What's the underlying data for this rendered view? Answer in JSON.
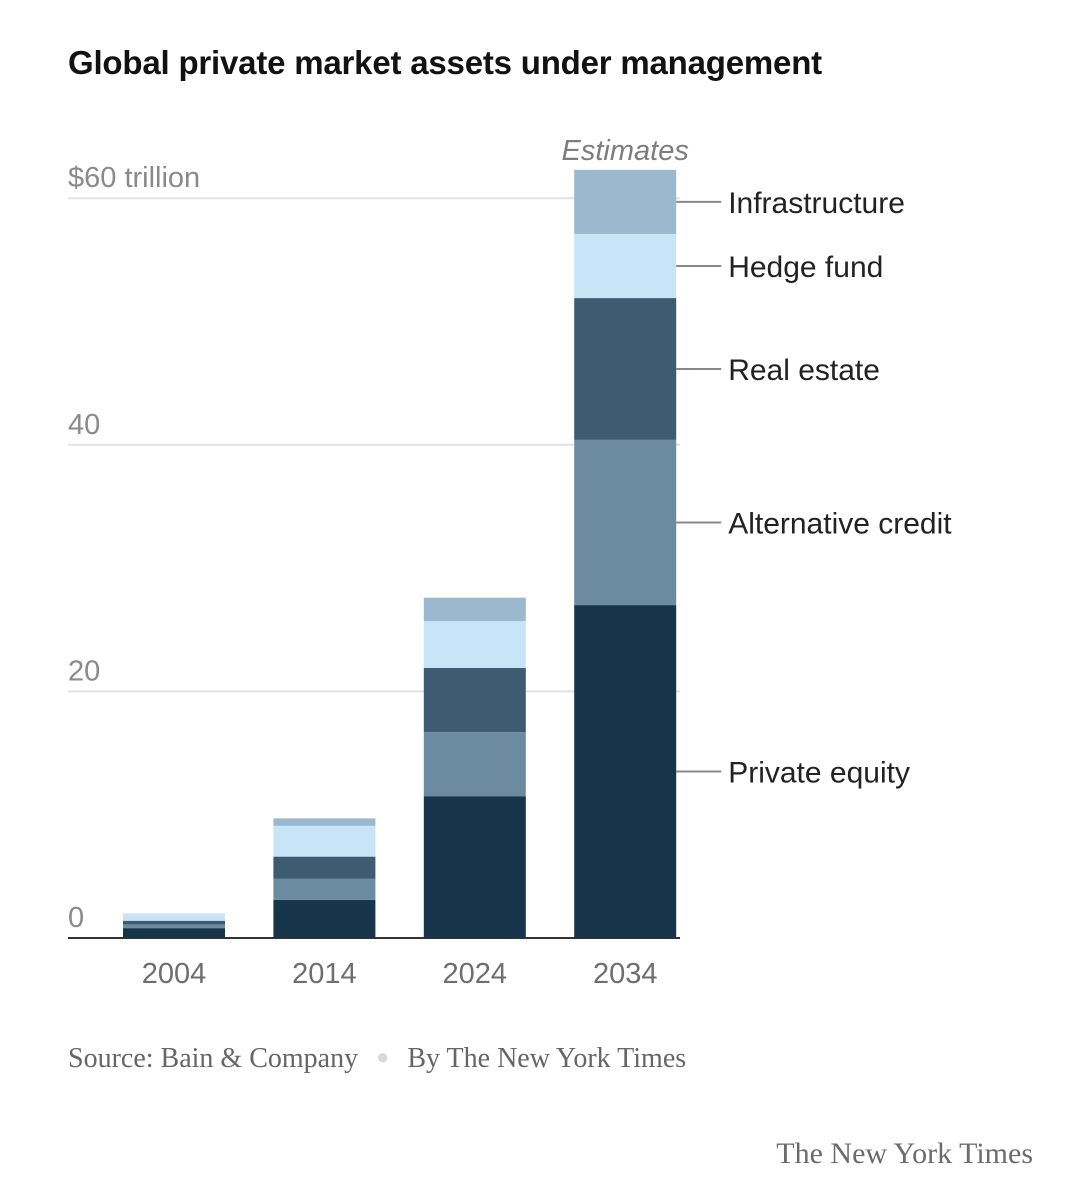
{
  "title": "Global private market assets under management",
  "source": "Source: Bain & Company",
  "byline": "By The New York Times",
  "brand": "The New York Times",
  "chart_data": {
    "type": "bar",
    "stacked": true,
    "categories": [
      "2004",
      "2014",
      "2024",
      "2034"
    ],
    "estimate_label": "Estimates",
    "estimate_category": "2034",
    "y_tick_values": [
      0,
      20,
      40,
      60
    ],
    "y_tick_labels": [
      "0",
      "20",
      "40",
      "$60 trillion"
    ],
    "ylim": [
      0,
      62.5
    ],
    "grid": true,
    "legend_placement": "right of last bar",
    "series": [
      {
        "name": "Private equity",
        "color": "#17354a",
        "values": [
          0.8,
          3.1,
          11.5,
          27.0
        ]
      },
      {
        "name": "Alternative credit",
        "color": "#6b8ba0",
        "values": [
          0.3,
          1.7,
          5.2,
          13.4
        ]
      },
      {
        "name": "Real estate",
        "color": "#3e5c71",
        "values": [
          0.3,
          1.8,
          5.2,
          11.5
        ]
      },
      {
        "name": "Hedge fund",
        "color": "#c8e5f7",
        "values": [
          0.6,
          2.5,
          3.8,
          5.2
        ]
      },
      {
        "name": "Infrastructure",
        "color": "#9ab8ce",
        "values": [
          0.0,
          0.6,
          1.9,
          5.2
        ]
      }
    ]
  }
}
